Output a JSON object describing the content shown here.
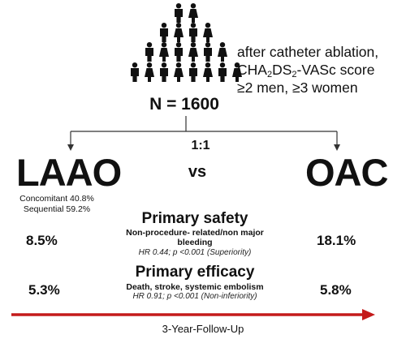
{
  "population": {
    "criteria": [
      "after catheter ablation,",
      "CHA2DS2-VASc score",
      "≥2 men, ≥3 women"
    ],
    "total": "N = 1600"
  },
  "randomization": {
    "ratio": "1:1",
    "versus": "vs"
  },
  "arms": {
    "left": {
      "name": "LAAO",
      "subgroups": [
        "Concomitant 40.8%",
        "Sequential 59.2%"
      ]
    },
    "right": {
      "name": "OAC"
    }
  },
  "outcomes": {
    "safety": {
      "heading": "Primary safety",
      "definition": "Non-procedure- related/non major bleeding",
      "statistic": "HR 0.44; p <0.001 (Superiority)",
      "laao": "8.5%",
      "oac": "18.1%"
    },
    "efficacy": {
      "heading": "Primary efficacy",
      "definition": "Death, stroke, systemic embolism",
      "statistic": "HR 0.91; p <0.001 (Non-inferiority)",
      "laao": "5.3%",
      "oac": "5.8%"
    }
  },
  "timeline": {
    "label": "3-Year-Follow-Up",
    "arrow_color": "#c41b1b"
  },
  "colors": {
    "person_icon": "#111111",
    "text": "#111111"
  }
}
